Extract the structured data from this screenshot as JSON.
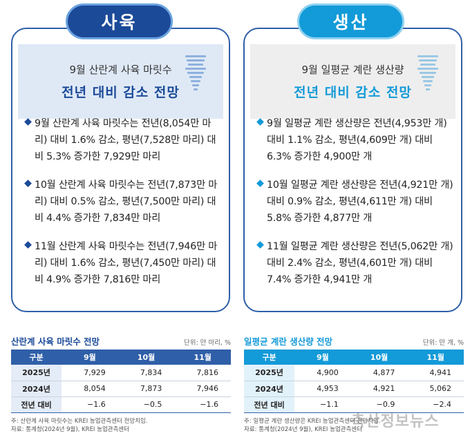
{
  "left": {
    "badge": "사육",
    "header_sub": "9월 산란계 사육 마릿수",
    "header_title": "전년 대비 감소 전망",
    "bullets": [
      "9월 산란계 사육 마릿수는 전년(8,054만 마리) 대비 1.6% 감소, 평년(7,528만 마리) 대비 5.3% 증가한 7,929만 마리",
      "10월 산란계 사육 마릿수는 전년(7,873만 마리) 대비 0.5% 감소, 평년(7,500만 마리) 대비 4.4% 증가한 7,834만 마리",
      "11월 산란계 사육 마릿수는 전년(7,946만 마리) 대비 1.6% 감소, 평년(7,450만 마리) 대비 4.9% 증가한 7,816만 마리"
    ],
    "table": {
      "title": "산란계 사육 마릿수 전망",
      "unit": "단위: 만 마리, %",
      "headers": [
        "구분",
        "9월",
        "10월",
        "11월"
      ],
      "rows": [
        [
          "2025년",
          "7,929",
          "7,834",
          "7,816"
        ],
        [
          "2024년",
          "8,054",
          "7,873",
          "7,946"
        ],
        [
          "전년 대비",
          "−1.6",
          "−0.5",
          "−1.6"
        ]
      ],
      "notes": [
        "주: 산란계 사육 마릿수는 KREI 농업관측센터 전망치임.",
        "자료: 통계청(2024년 9월), KREI 농업관측센터"
      ]
    }
  },
  "right": {
    "badge": "생산",
    "header_sub": "9월 일평균 계란 생산량",
    "header_title": "전년 대비 감소 전망",
    "bullets": [
      "9월 일평균 계란 생산량은 전년(4,953만 개) 대비 1.1% 감소, 평년(4,609만 개) 대비 6.3% 증가한 4,900만 개",
      "10월 일평균 계란 생산량은 전년(4,921만 개) 대비 0.9% 감소, 평년(4,611만 개) 대비 5.8% 증가한 4,877만 개",
      "11월 일평균 계란 생산량은 전년(5,062만 개) 대비 2.4% 감소, 평년(4,601만 개) 대비 7.4% 증가한 4,941만 개"
    ],
    "table": {
      "title": "일평균 계란 생산량 전망",
      "unit": "단위: 만 개, %",
      "headers": [
        "구분",
        "9월",
        "10월",
        "11월"
      ],
      "rows": [
        [
          "2025년",
          "4,900",
          "4,877",
          "4,941"
        ],
        [
          "2024년",
          "4,953",
          "4,921",
          "5,062"
        ],
        [
          "전년 대비",
          "−1.1",
          "−0.9",
          "−2.4"
        ]
      ],
      "notes": [
        "주: 일평균 계란 생산량은 KREI 농업관측센터 전망치임.",
        "자료: 통계청(2024년 9월), KREI 농업관측센터"
      ]
    }
  },
  "watermark": "축산정보뉴스",
  "colors": {
    "navy": "#1b4a98",
    "sky": "#139ad8"
  }
}
